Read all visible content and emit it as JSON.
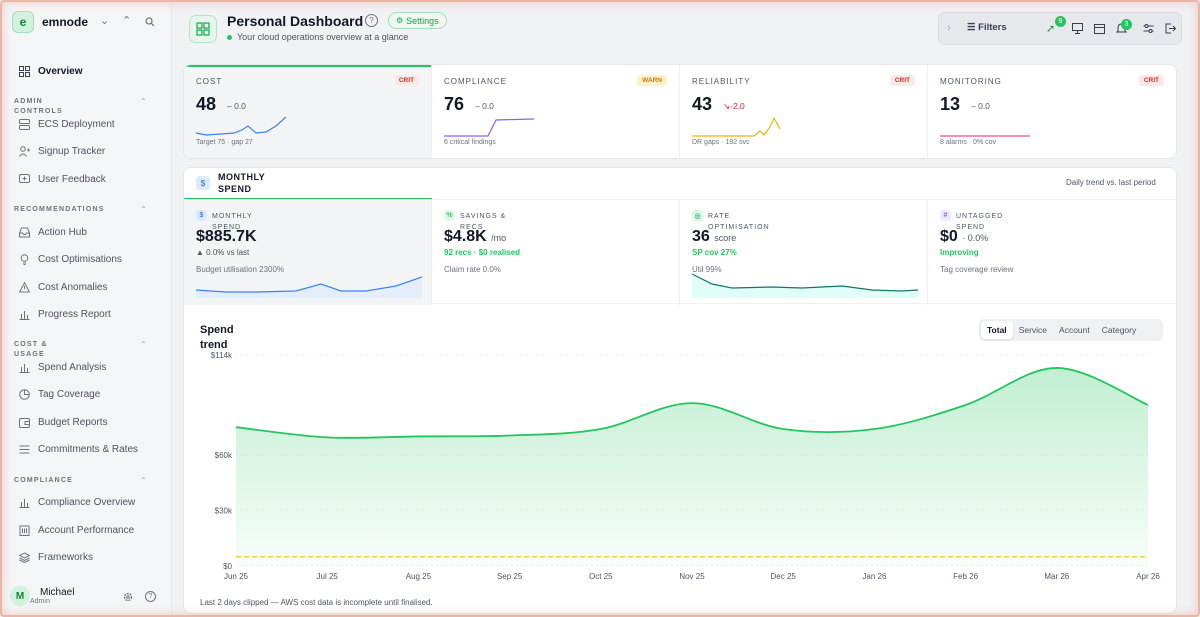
{
  "app": {
    "name": "emnode",
    "logo_letter": "e"
  },
  "sidebar": {
    "overview": "Overview",
    "sections": [
      {
        "label": "ADMIN CONTROLS",
        "items": [
          "ECS Deployment",
          "Signup Tracker",
          "User Feedback"
        ]
      },
      {
        "label": "RECOMMENDATIONS",
        "items": [
          "Action Hub",
          "Cost Optimisations",
          "Cost Anomalies",
          "Progress Report"
        ]
      },
      {
        "label": "COST & USAGE",
        "items": [
          "Spend Analysis",
          "Tag Coverage",
          "Budget Reports",
          "Commitments & Rates"
        ]
      },
      {
        "label": "COMPLIANCE",
        "items": [
          "Compliance Overview",
          "Account Performance",
          "Frameworks"
        ]
      }
    ],
    "user": {
      "name": "Michael",
      "role": "Admin",
      "initial": "M"
    }
  },
  "header": {
    "title": "Personal Dashboard",
    "settings_label": "Settings",
    "subtitle": "Your cloud operations overview at a glance"
  },
  "toolbar": {
    "filters_label": "Filters",
    "rocket_badge": "9",
    "bell_badge": "3"
  },
  "kpis": [
    {
      "label": "COST",
      "status": "CRIT",
      "value": "48",
      "delta": "– 0.0",
      "footer": "Target 75 · gap 27",
      "color": "#3b82f6"
    },
    {
      "label": "COMPLIANCE",
      "status": "WARN",
      "value": "76",
      "delta": "– 0.0",
      "footer": "6 critical findings",
      "color": "#8b5cf6"
    },
    {
      "label": "RELIABILITY",
      "status": "CRIT",
      "value": "43",
      "delta": "↘-2.0",
      "footer": "DR gaps · 192 svc",
      "color": "#eab308"
    },
    {
      "label": "MONITORING",
      "status": "CRIT",
      "value": "13",
      "delta": "– 0.0",
      "footer": "8 alarms · 0% cov",
      "color": "#ec4899"
    }
  ],
  "spend": {
    "title": "MONTHLY SPEND",
    "note": "Daily trend vs. last period",
    "subcards": [
      {
        "label": "MONTHLY SPEND",
        "value": "$885.7K",
        "unit": "",
        "line1": "▲ 0.0% vs last",
        "line2": "Budget utilisation 2300%",
        "icon": "$"
      },
      {
        "label": "SAVINGS & RECS",
        "value": "$4.8K",
        "unit": "/mo",
        "line1": "92 recs · $0 realised",
        "line2": "Claim rate 0.0%",
        "icon": "%"
      },
      {
        "label": "RATE OPTIMISATION",
        "value": "36",
        "unit": "score",
        "line1": "SP cov 27%",
        "line2": "Util 99%",
        "icon": "◎"
      },
      {
        "label": "UNTAGGED SPEND",
        "value": "$0",
        "unit": "· 0.0%",
        "line1": "Improving",
        "line2": "Tag coverage review",
        "icon": "#"
      }
    ],
    "chart_title": "Spend trend",
    "segments": [
      "Total",
      "Service",
      "Account",
      "Category"
    ],
    "active_segment": "Total",
    "footnote": "Last 2 days clipped — AWS cost data is incomplete until finalised."
  },
  "chart_data": {
    "type": "area",
    "title": "Spend trend",
    "x": [
      "Jun 25",
      "Jul 25",
      "Aug 25",
      "Sep 25",
      "Oct 25",
      "Nov 25",
      "Dec 25",
      "Jan 26",
      "Feb 26",
      "Mar 26",
      "Apr 26"
    ],
    "y_ticks": [
      "$0",
      "$30k",
      "$60k",
      "$114k"
    ],
    "series": [
      {
        "values": [
          75000,
          69500,
          70000,
          70500,
          74000,
          88000,
          74000,
          74000,
          87000,
          107000,
          87000
        ]
      }
    ],
    "budget_line": 5000,
    "ylim": [
      0,
      114000
    ],
    "colors": {
      "line": "#22c55e",
      "budget": "#f5c518"
    }
  }
}
